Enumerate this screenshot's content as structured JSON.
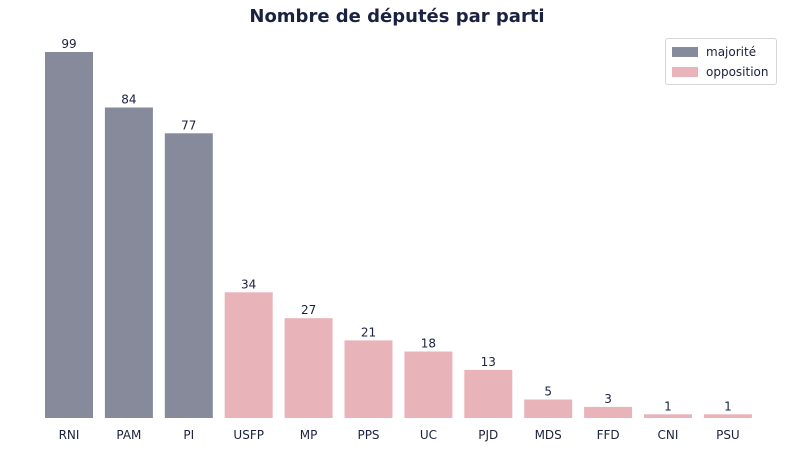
{
  "chart_data": {
    "type": "bar",
    "title": "Nombre de députés par parti",
    "xlabel": "",
    "ylabel": "",
    "ylim": [
      0,
      100
    ],
    "grid": false,
    "legend_placement": "top-right",
    "categories": [
      "RNI",
      "PAM",
      "PI",
      "USFP",
      "MP",
      "PPS",
      "UC",
      "PJD",
      "MDS",
      "FFD",
      "CNI",
      "PSU"
    ],
    "values": [
      99,
      84,
      77,
      34,
      27,
      21,
      18,
      13,
      5,
      3,
      1,
      1
    ],
    "groups": [
      "majorité",
      "majorité",
      "majorité",
      "opposition",
      "opposition",
      "opposition",
      "opposition",
      "opposition",
      "opposition",
      "opposition",
      "opposition",
      "opposition"
    ],
    "legend": [
      {
        "label": "majorité",
        "color": "#868a9b"
      },
      {
        "label": "opposition",
        "color": "#e8b4b9"
      }
    ]
  },
  "colors": {
    "majorité": "#868a9b",
    "opposition": "#e8b4b9",
    "text": "#1b2140"
  }
}
